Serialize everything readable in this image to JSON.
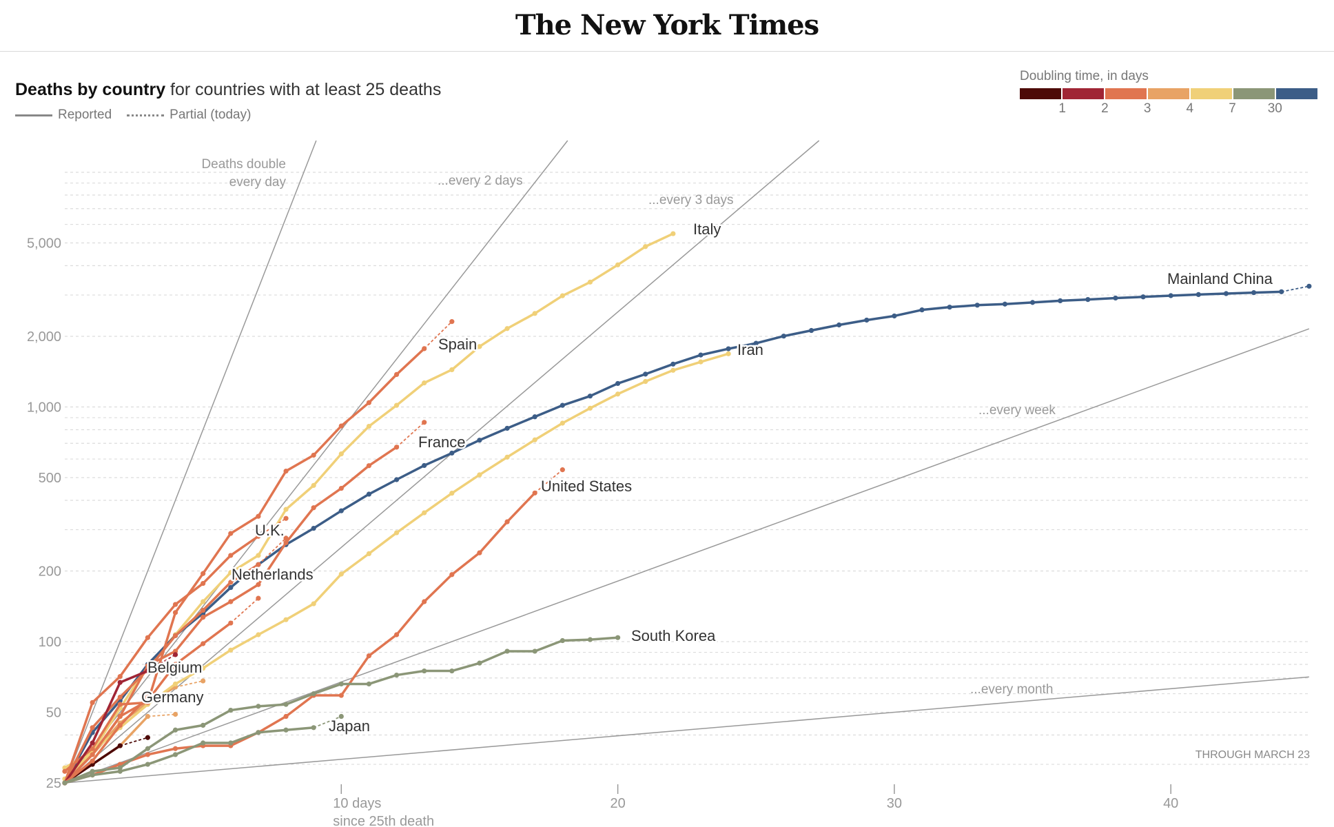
{
  "header": {
    "logo": "The New York Times"
  },
  "title": {
    "bold": "Deaths by country",
    "rest": " for countries with at least 25 deaths"
  },
  "key": {
    "reported": "Reported",
    "partial": "Partial (today)"
  },
  "legend": {
    "title": "Doubling time, in days",
    "colors": [
      "#4d0a08",
      "#a02535",
      "#e07550",
      "#e8a365",
      "#f0d078",
      "#8b9677",
      "#3c5d87"
    ],
    "ticks": [
      "1",
      "2",
      "3",
      "4",
      "7",
      "30"
    ]
  },
  "chart_data": {
    "type": "line",
    "title": "Deaths by country",
    "subtitle": "for countries with at least 25 deaths",
    "xlabel": "since 25th death",
    "ylabel": "",
    "yscale": "log",
    "xlim": [
      0,
      45
    ],
    "ylim": [
      25,
      13600
    ],
    "grid": true,
    "x_ticks": [
      {
        "value": 10,
        "label": "10 days"
      },
      {
        "value": 20,
        "label": "20"
      },
      {
        "value": 30,
        "label": "30"
      },
      {
        "value": 40,
        "label": "40"
      }
    ],
    "y_ticks": [
      {
        "value": 25,
        "label": "25"
      },
      {
        "value": 50,
        "label": "50"
      },
      {
        "value": 100,
        "label": "100"
      },
      {
        "value": 200,
        "label": "200"
      },
      {
        "value": 500,
        "label": "500"
      },
      {
        "value": 1000,
        "label": "1,000"
      },
      {
        "value": 2000,
        "label": "2,000"
      },
      {
        "value": 5000,
        "label": "5,000"
      }
    ],
    "reference_lines": [
      {
        "doubling_days": 1,
        "label_lines": [
          "Deaths double",
          "every day"
        ]
      },
      {
        "doubling_days": 2,
        "label_lines": [
          "...every 2 days"
        ]
      },
      {
        "doubling_days": 3,
        "label_lines": [
          "...every 3 days"
        ]
      },
      {
        "doubling_days": 7,
        "label_lines": [
          "...every week"
        ]
      },
      {
        "doubling_days": 30,
        "label_lines": [
          "...every month"
        ]
      }
    ],
    "note": "THROUGH MARCH 23",
    "series": [
      {
        "name": "",
        "color": "#e8a365",
        "values": [
          25,
          30,
          36,
          48
        ],
        "partial": 49
      },
      {
        "name": "",
        "color": "#e8a365",
        "values": [
          25,
          33,
          45,
          55,
          64
        ],
        "partial": 68
      },
      {
        "name": "",
        "color": "#4d0a08",
        "values": [
          25,
          30,
          36
        ],
        "partial": 39
      },
      {
        "name": "",
        "color": "#e07550",
        "values": [
          25,
          33,
          48,
          56,
          80,
          98,
          120
        ],
        "partial": 153
      },
      {
        "name": "Italy",
        "color": "#f0d078",
        "values": [
          29,
          34,
          52,
          79,
          107,
          148,
          197,
          233,
          366,
          463,
          631,
          827,
          1016,
          1266,
          1441,
          1809,
          2158,
          2503,
          2978,
          3405,
          4032,
          4825,
          5476
        ]
      },
      {
        "name": "Iran",
        "color": "#f0d078",
        "values": [
          26,
          34,
          43,
          54,
          66,
          77,
          92,
          107,
          124,
          145,
          194,
          237,
          291,
          354,
          429,
          514,
          611,
          724,
          853,
          988,
          1135,
          1284,
          1433,
          1556,
          1685
        ]
      },
      {
        "name": "Mainland China",
        "color": "#3c5d87",
        "values": [
          25,
          41,
          56,
          80,
          106,
          132,
          170,
          213,
          259,
          304,
          361,
          425,
          490,
          563,
          636,
          722,
          811,
          908,
          1016,
          1113,
          1259,
          1380,
          1523,
          1665,
          1770,
          1868,
          2004,
          2118,
          2236,
          2345,
          2442,
          2592,
          2663,
          2715,
          2744,
          2788,
          2835,
          2870,
          2912,
          2945,
          2981,
          3013,
          3042,
          3070,
          3097
        ],
        "partial": 3270
      },
      {
        "name": "Spain",
        "color": "#e07550",
        "values": [
          28,
          35,
          54,
          55,
          133,
          195,
          289,
          342,
          533,
          623,
          830,
          1043,
          1375,
          1772
        ],
        "partial": 2311
      },
      {
        "name": "France",
        "color": "#e07550",
        "values": [
          25,
          33,
          48,
          79,
          91,
          127,
          148,
          175,
          264,
          372,
          450,
          562,
          674
        ],
        "partial": 860
      },
      {
        "name": "United States",
        "color": "#e07550",
        "values": [
          25,
          27,
          30,
          33,
          35,
          36,
          36,
          41,
          48,
          59,
          59,
          87,
          107,
          148,
          193,
          239,
          324,
          430
        ],
        "partial": 540
      },
      {
        "name": "U.K.",
        "color": "#e07550",
        "values": [
          25,
          55,
          71,
          104,
          144,
          177,
          233,
          281
        ],
        "partial": 335
      },
      {
        "name": "Netherlands",
        "color": "#e07550",
        "values": [
          25,
          43,
          58,
          76,
          106,
          136,
          179,
          213
        ],
        "partial": 276
      },
      {
        "name": "Belgium",
        "color": "#a02535",
        "values": [
          25,
          37,
          67,
          75
        ],
        "partial": 88
      },
      {
        "name": "Germany",
        "color": "#e07550",
        "values": [
          25,
          31,
          44,
          58,
          58
        ]
      },
      {
        "name": "South Korea",
        "color": "#8b9677",
        "values": [
          25,
          28,
          29,
          35,
          42,
          44,
          51,
          53,
          54,
          60,
          66,
          66,
          72,
          75,
          75,
          81,
          91,
          91,
          101,
          102,
          104
        ]
      },
      {
        "name": "Japan",
        "color": "#8b9677",
        "values": [
          25,
          27,
          28,
          30,
          33,
          37,
          37,
          41,
          42,
          43
        ],
        "partial": 48
      }
    ]
  }
}
